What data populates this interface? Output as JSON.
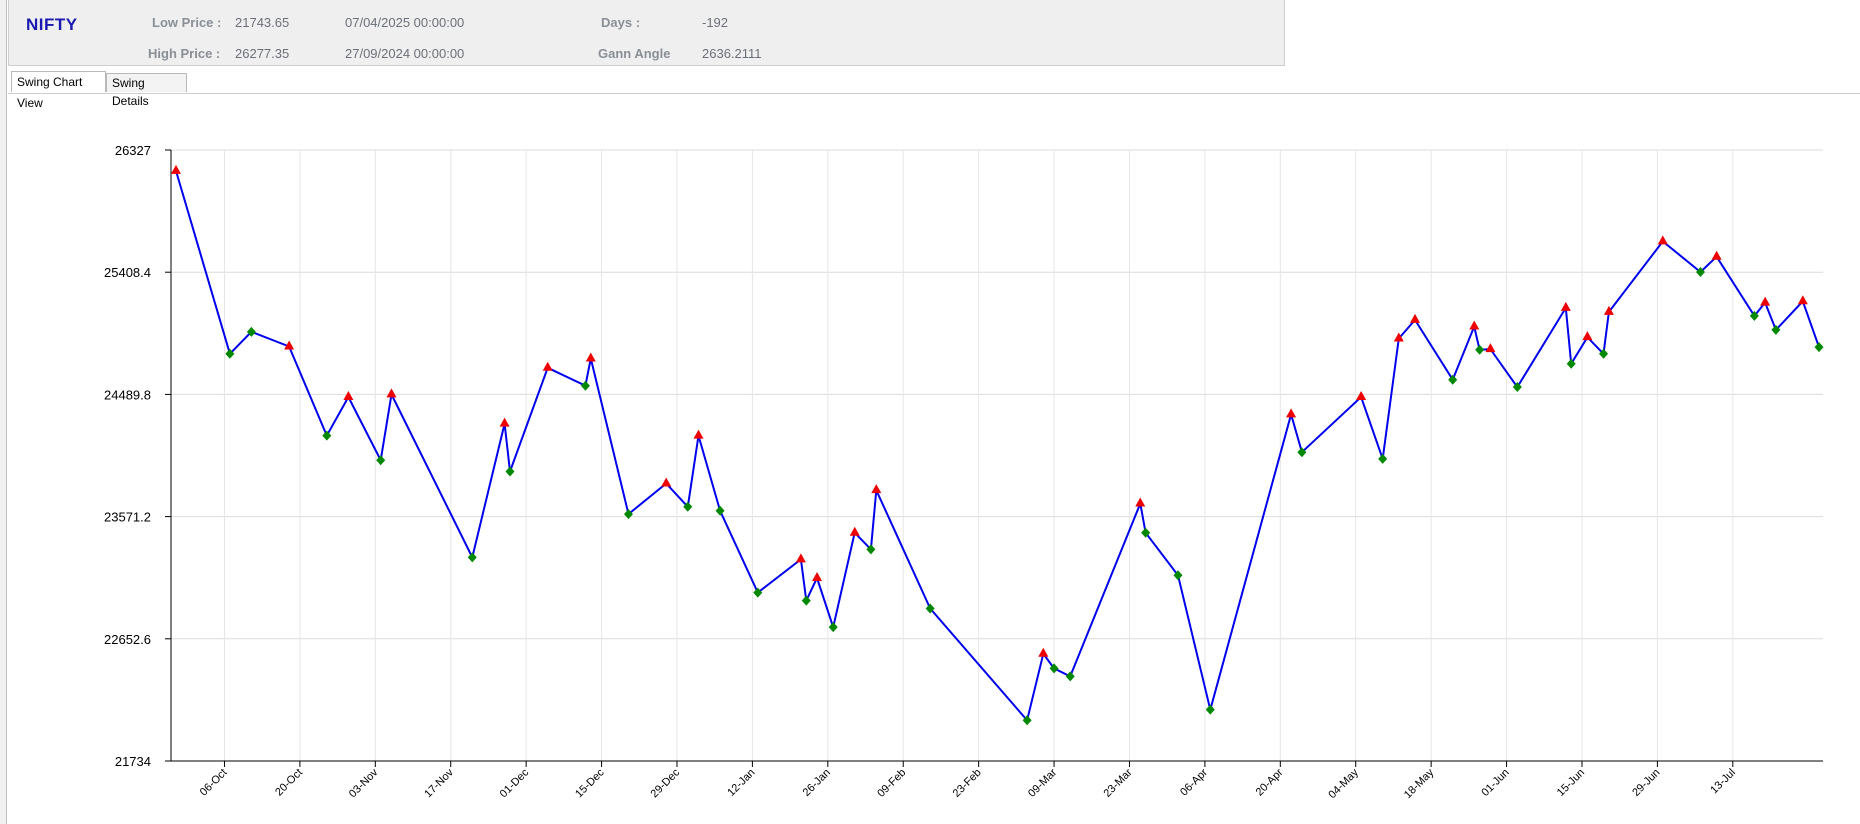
{
  "header": {
    "symbol": "NIFTY",
    "low_price_label": "Low Price :",
    "low_price_value": "21743.65",
    "low_date": "07/04/2025 00:00:00",
    "high_price_label": "High Price :",
    "high_price_value": "26277.35",
    "high_date": "27/09/2024 00:00:00",
    "days_label": "Days :",
    "days_value": "-192",
    "gann_label": "Gann Angle",
    "gann_value": "2636.2111"
  },
  "tabs": [
    {
      "label": "Swing Chart View",
      "active": true
    },
    {
      "label": "Swing Details",
      "active": false
    }
  ],
  "chart_data": {
    "type": "line",
    "ylim": [
      21734,
      26327
    ],
    "y_ticks": [
      "26327",
      "25408.4",
      "24489.8",
      "23571.2",
      "22652.6",
      "21734"
    ],
    "x_ticks": [
      "06-Oct",
      "20-Oct",
      "03-Nov",
      "17-Nov",
      "01-Dec",
      "15-Dec",
      "29-Dec",
      "12-Jan",
      "26-Jan",
      "09-Feb",
      "23-Feb",
      "09-Mar",
      "23-Mar",
      "06-Apr",
      "20-Apr",
      "04-May",
      "18-May",
      "01-Jun",
      "15-Jun",
      "29-Jun",
      "13-Jul"
    ],
    "grid": true,
    "colors": {
      "line": "#0000ee",
      "high": "#ee0000",
      "low": "#008800"
    },
    "points": [
      {
        "d": "2024-09-27",
        "v": 26170,
        "t": "H"
      },
      {
        "d": "2024-10-07",
        "v": 24795,
        "t": "L"
      },
      {
        "d": "2024-10-11",
        "v": 24960,
        "t": "L"
      },
      {
        "d": "2024-10-18",
        "v": 24850,
        "t": "H"
      },
      {
        "d": "2024-10-25",
        "v": 24180,
        "t": "L"
      },
      {
        "d": "2024-10-29",
        "v": 24470,
        "t": "H"
      },
      {
        "d": "2024-11-04",
        "v": 23995,
        "t": "L"
      },
      {
        "d": "2024-11-06",
        "v": 24490,
        "t": "H"
      },
      {
        "d": "2024-11-21",
        "v": 23265,
        "t": "L"
      },
      {
        "d": "2024-11-27",
        "v": 24270,
        "t": "H"
      },
      {
        "d": "2024-11-28",
        "v": 23910,
        "t": "L"
      },
      {
        "d": "2024-12-05",
        "v": 24690,
        "t": "H"
      },
      {
        "d": "2024-12-12",
        "v": 24555,
        "t": "L"
      },
      {
        "d": "2024-12-13",
        "v": 24760,
        "t": "H"
      },
      {
        "d": "2024-12-20",
        "v": 23590,
        "t": "L"
      },
      {
        "d": "2024-12-27",
        "v": 23820,
        "t": "H"
      },
      {
        "d": "2024-12-31",
        "v": 23645,
        "t": "L"
      },
      {
        "d": "2025-01-02",
        "v": 24180,
        "t": "H"
      },
      {
        "d": "2025-01-06",
        "v": 23615,
        "t": "L"
      },
      {
        "d": "2025-01-13",
        "v": 23000,
        "t": "L"
      },
      {
        "d": "2025-01-21",
        "v": 23250,
        "t": "H"
      },
      {
        "d": "2025-01-22",
        "v": 22940,
        "t": "L"
      },
      {
        "d": "2025-01-24",
        "v": 23110,
        "t": "H"
      },
      {
        "d": "2025-01-27",
        "v": 22740,
        "t": "L"
      },
      {
        "d": "2025-01-31",
        "v": 23450,
        "t": "H"
      },
      {
        "d": "2025-02-03",
        "v": 23325,
        "t": "L"
      },
      {
        "d": "2025-02-04",
        "v": 23770,
        "t": "H"
      },
      {
        "d": "2025-02-14",
        "v": 22880,
        "t": "L"
      },
      {
        "d": "2025-03-04",
        "v": 22040,
        "t": "L"
      },
      {
        "d": "2025-03-07",
        "v": 22540,
        "t": "H"
      },
      {
        "d": "2025-03-09",
        "v": 22430,
        "t": "L"
      },
      {
        "d": "2025-03-12",
        "v": 22370,
        "t": "L"
      },
      {
        "d": "2025-03-25",
        "v": 23670,
        "t": "H"
      },
      {
        "d": "2025-03-26",
        "v": 23450,
        "t": "L"
      },
      {
        "d": "2025-04-01",
        "v": 23130,
        "t": "L"
      },
      {
        "d": "2025-04-07",
        "v": 22120,
        "t": "L"
      },
      {
        "d": "2025-04-22",
        "v": 24340,
        "t": "H"
      },
      {
        "d": "2025-04-24",
        "v": 24055,
        "t": "L"
      },
      {
        "d": "2025-05-05",
        "v": 24470,
        "t": "H"
      },
      {
        "d": "2025-05-09",
        "v": 24005,
        "t": "L"
      },
      {
        "d": "2025-05-12",
        "v": 24910,
        "t": "H"
      },
      {
        "d": "2025-05-15",
        "v": 25050,
        "t": "H"
      },
      {
        "d": "2025-05-22",
        "v": 24600,
        "t": "L"
      },
      {
        "d": "2025-05-26",
        "v": 25000,
        "t": "H"
      },
      {
        "d": "2025-05-27",
        "v": 24825,
        "t": "L"
      },
      {
        "d": "2025-05-29",
        "v": 24830,
        "t": "H"
      },
      {
        "d": "2025-06-03",
        "v": 24545,
        "t": "L"
      },
      {
        "d": "2025-06-12",
        "v": 25140,
        "t": "H"
      },
      {
        "d": "2025-06-13",
        "v": 24720,
        "t": "L"
      },
      {
        "d": "2025-06-16",
        "v": 24920,
        "t": "H"
      },
      {
        "d": "2025-06-19",
        "v": 24795,
        "t": "L"
      },
      {
        "d": "2025-06-20",
        "v": 25110,
        "t": "H"
      },
      {
        "d": "2025-06-30",
        "v": 25640,
        "t": "H"
      },
      {
        "d": "2025-07-07",
        "v": 25410,
        "t": "L"
      },
      {
        "d": "2025-07-10",
        "v": 25525,
        "t": "H"
      },
      {
        "d": "2025-07-17",
        "v": 25080,
        "t": "L"
      },
      {
        "d": "2025-07-19",
        "v": 25180,
        "t": "H"
      },
      {
        "d": "2025-07-21",
        "v": 24975,
        "t": "L"
      },
      {
        "d": "2025-07-26",
        "v": 25190,
        "t": "H"
      },
      {
        "d": "2025-07-29",
        "v": 24845,
        "t": "L"
      }
    ]
  }
}
